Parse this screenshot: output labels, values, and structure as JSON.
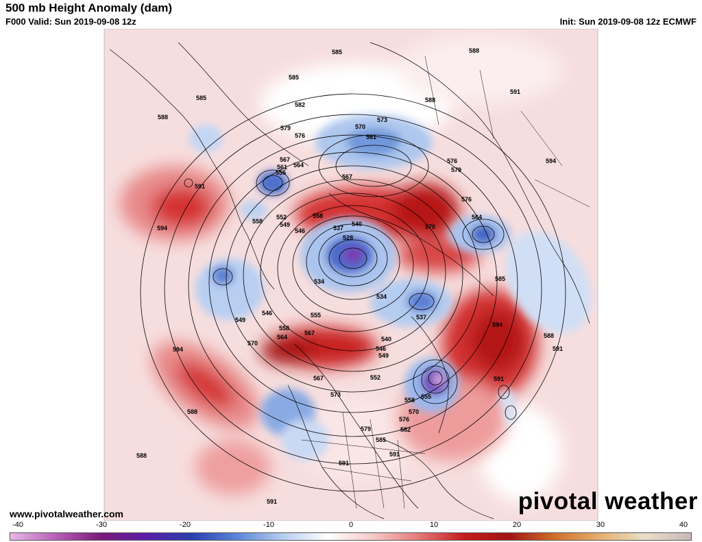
{
  "header": {
    "title": "500 mb Height Anomaly (dam)",
    "valid": "F000 Valid: Sun 2019-09-08 12z",
    "init": "Init: Sun 2019-09-08 12z ECMWF"
  },
  "footer": {
    "website": "www.pivotalweather.com",
    "brand": "pivotal weather"
  },
  "colorbar": {
    "ticks": [
      "-40",
      "-30",
      "-20",
      "-10",
      "0",
      "10",
      "20",
      "30",
      "40"
    ],
    "stops": [
      "#e6b8e6",
      "#b860b8",
      "#7a1a7a",
      "#5a1fa8",
      "#2a3fb0",
      "#5b86d8",
      "#b7cdf0",
      "#ffffff",
      "#f6c8c8",
      "#e57a7a",
      "#c51b1b",
      "#a31414",
      "#d0702a",
      "#e6b070",
      "#e8e0c8",
      "#c9b8b8"
    ]
  },
  "contour_labels": [
    {
      "text": "585",
      "id": "l1"
    },
    {
      "text": "588",
      "id": "l2"
    },
    {
      "text": "585",
      "id": "l3"
    },
    {
      "text": "588",
      "id": "l4"
    },
    {
      "text": "591",
      "id": "l5"
    },
    {
      "text": "585",
      "id": "l6"
    },
    {
      "text": "588",
      "id": "l7"
    },
    {
      "text": "582",
      "id": "l8"
    },
    {
      "text": "579",
      "id": "l9"
    },
    {
      "text": "576",
      "id": "l10"
    },
    {
      "text": "570",
      "id": "l11"
    },
    {
      "text": "573",
      "id": "l12"
    },
    {
      "text": "561",
      "id": "l13"
    },
    {
      "text": "567",
      "id": "l14"
    },
    {
      "text": "561",
      "id": "l15"
    },
    {
      "text": "564",
      "id": "l16"
    },
    {
      "text": "555",
      "id": "l17"
    },
    {
      "text": "591",
      "id": "l18"
    },
    {
      "text": "567",
      "id": "l19"
    },
    {
      "text": "576",
      "id": "l20"
    },
    {
      "text": "579",
      "id": "l21"
    },
    {
      "text": "594",
      "id": "l22"
    },
    {
      "text": "594",
      "id": "l23"
    },
    {
      "text": "558",
      "id": "l24"
    },
    {
      "text": "552",
      "id": "l25"
    },
    {
      "text": "549",
      "id": "l26"
    },
    {
      "text": "546",
      "id": "l27"
    },
    {
      "text": "558",
      "id": "l28"
    },
    {
      "text": "537",
      "id": "l29"
    },
    {
      "text": "540",
      "id": "l30"
    },
    {
      "text": "528",
      "id": "l31"
    },
    {
      "text": "576",
      "id": "l32"
    },
    {
      "text": "564",
      "id": "l33"
    },
    {
      "text": "570",
      "id": "l34"
    },
    {
      "text": "585",
      "id": "l35"
    },
    {
      "text": "534",
      "id": "l36"
    },
    {
      "text": "534",
      "id": "l37"
    },
    {
      "text": "537",
      "id": "l38"
    },
    {
      "text": "549",
      "id": "l39"
    },
    {
      "text": "546",
      "id": "l40"
    },
    {
      "text": "555",
      "id": "l41"
    },
    {
      "text": "558",
      "id": "l42"
    },
    {
      "text": "564",
      "id": "l43"
    },
    {
      "text": "567",
      "id": "l44"
    },
    {
      "text": "570",
      "id": "l45"
    },
    {
      "text": "540",
      "id": "l46"
    },
    {
      "text": "546",
      "id": "l47"
    },
    {
      "text": "549",
      "id": "l48"
    },
    {
      "text": "594",
      "id": "l49"
    },
    {
      "text": "588",
      "id": "l50"
    },
    {
      "text": "591",
      "id": "l51"
    },
    {
      "text": "594",
      "id": "l52"
    },
    {
      "text": "552",
      "id": "l53"
    },
    {
      "text": "567",
      "id": "l54"
    },
    {
      "text": "573",
      "id": "l55"
    },
    {
      "text": "558",
      "id": "l56"
    },
    {
      "text": "555",
      "id": "l57"
    },
    {
      "text": "570",
      "id": "l58"
    },
    {
      "text": "576",
      "id": "l59"
    },
    {
      "text": "579",
      "id": "l60"
    },
    {
      "text": "582",
      "id": "l61"
    },
    {
      "text": "585",
      "id": "l62"
    },
    {
      "text": "591",
      "id": "l63"
    },
    {
      "text": "591",
      "id": "l64"
    },
    {
      "text": "588",
      "id": "l65"
    },
    {
      "text": "588",
      "id": "l66"
    },
    {
      "text": "591",
      "id": "l67"
    },
    {
      "text": "591",
      "id": "l68"
    }
  ]
}
